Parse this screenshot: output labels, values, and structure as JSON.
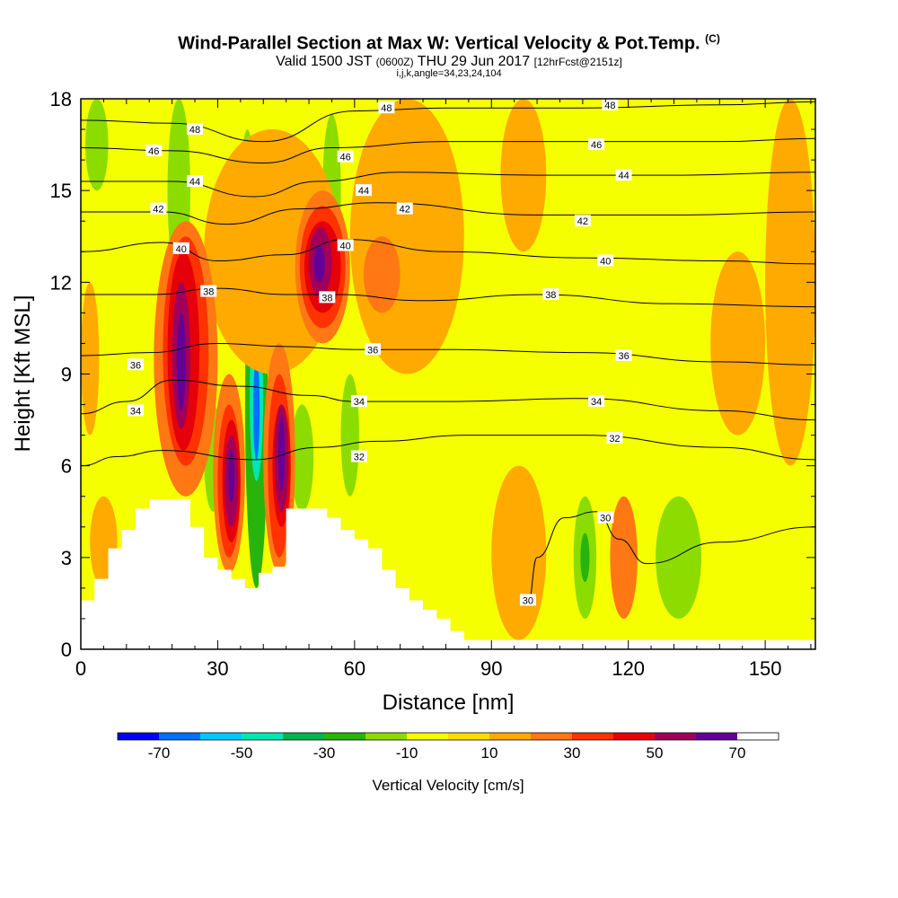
{
  "title": {
    "main": "Wind-Parallel Section at Max W: Vertical Velocity & Pot.Temp.",
    "main_tag": "(C)",
    "valid_prefix": "Valid 1500 JST",
    "valid_zulu": "(0600Z)",
    "valid_date": "THU 29 Jun 2017",
    "valid_fcst": "[12hrFcst@2151z]",
    "indices": "i,j,k,angle=34,23,24,104"
  },
  "chart_data": {
    "type": "heatmap",
    "xlabel": "Distance [nm]",
    "ylabel": "Height [Kft MSL]",
    "xlim": [
      0,
      161
    ],
    "ylim": [
      0,
      18
    ],
    "x_ticks": [
      0,
      30,
      60,
      90,
      120,
      150
    ],
    "y_ticks": [
      0,
      3,
      6,
      9,
      12,
      15,
      18
    ],
    "colorbar": {
      "label": "Vertical Velocity [cm/s]",
      "levels": [
        -80,
        -70,
        -60,
        -50,
        -40,
        -30,
        -20,
        -10,
        0,
        10,
        20,
        30,
        40,
        50,
        60,
        70,
        80
      ],
      "tick_labels": [
        "-70",
        "-50",
        "-30",
        "-10",
        "10",
        "30",
        "50",
        "70"
      ],
      "tick_values": [
        -70,
        -50,
        -30,
        -10,
        10,
        30,
        50,
        70
      ],
      "colors": [
        "#0000ff",
        "#0070ff",
        "#00c8ff",
        "#00e6b4",
        "#00b450",
        "#28b40a",
        "#8cdc00",
        "#f5ff00",
        "#ffdc00",
        "#ffaa00",
        "#ff7814",
        "#ff3200",
        "#e6000a",
        "#a0005a",
        "#640096"
      ]
    },
    "w_cells": [
      {
        "x0": 1,
        "x1": 6,
        "y0": 15,
        "y1": 18,
        "w": -20
      },
      {
        "x0": 19,
        "x1": 24,
        "y0": 12,
        "y1": 18,
        "w": -20
      },
      {
        "x0": 35,
        "x1": 38,
        "y0": 12.5,
        "y1": 17,
        "w": -20
      },
      {
        "x0": 53,
        "x1": 57,
        "y0": 12.5,
        "y1": 17.5,
        "w": -20
      },
      {
        "x0": 101,
        "x1": 160,
        "y0": 0.3,
        "y1": 18,
        "w": -10
      },
      {
        "x0": 73,
        "x1": 100,
        "y0": 0.3,
        "y1": 6,
        "w": -10
      },
      {
        "x0": 36,
        "x1": 41,
        "y0": 2,
        "y1": 14,
        "w": -30
      },
      {
        "x0": 37,
        "x1": 40,
        "y0": 5.5,
        "y1": 11,
        "w": -50
      },
      {
        "x0": 37.8,
        "x1": 39.2,
        "y0": 6.2,
        "y1": 9.5,
        "w": -70
      },
      {
        "x0": 27,
        "x1": 31,
        "y0": 4.5,
        "y1": 8,
        "w": -20
      },
      {
        "x0": 46,
        "x1": 51,
        "y0": 4.5,
        "y1": 8,
        "w": -20
      },
      {
        "x0": 57,
        "x1": 61,
        "y0": 5,
        "y1": 9,
        "w": -20
      },
      {
        "x0": 108,
        "x1": 113,
        "y0": 1,
        "y1": 5,
        "w": -20
      },
      {
        "x0": 109.5,
        "x1": 111.5,
        "y0": 2.2,
        "y1": 3.8,
        "w": -30
      },
      {
        "x0": 126,
        "x1": 136,
        "y0": 1,
        "y1": 5,
        "w": -20
      },
      {
        "x0": 2,
        "x1": 8,
        "y0": 2,
        "y1": 5,
        "w": 10
      },
      {
        "x0": 27,
        "x1": 57,
        "y0": 9,
        "y1": 17,
        "w": 10
      },
      {
        "x0": 59,
        "x1": 84,
        "y0": 9,
        "y1": 18,
        "w": 10
      },
      {
        "x0": 92,
        "x1": 102,
        "y0": 13,
        "y1": 18,
        "w": 10
      },
      {
        "x0": 90,
        "x1": 102,
        "y0": 0.3,
        "y1": 6,
        "w": 10
      },
      {
        "x0": 138,
        "x1": 150,
        "y0": 7,
        "y1": 13,
        "w": 10
      },
      {
        "x0": 150,
        "x1": 161,
        "y0": 6,
        "y1": 18,
        "w": 10
      },
      {
        "x0": 0,
        "x1": 4,
        "y0": 7,
        "y1": 12,
        "w": 10
      },
      {
        "x0": 16,
        "x1": 30,
        "y0": 5,
        "y1": 14,
        "w": 20
      },
      {
        "x0": 47,
        "x1": 59,
        "y0": 10,
        "y1": 15,
        "w": 20
      },
      {
        "x0": 29,
        "x1": 36,
        "y0": 2.5,
        "y1": 9,
        "w": 20
      },
      {
        "x0": 40,
        "x1": 47,
        "y0": 2.5,
        "y1": 10,
        "w": 20
      },
      {
        "x0": 62,
        "x1": 70,
        "y0": 11,
        "y1": 13.5,
        "w": 20
      },
      {
        "x0": 116,
        "x1": 122,
        "y0": 1,
        "y1": 5,
        "w": 20
      },
      {
        "x0": 18,
        "x1": 28,
        "y0": 6,
        "y1": 13.5,
        "w": 30
      },
      {
        "x0": 48,
        "x1": 58,
        "y0": 10.5,
        "y1": 14.5,
        "w": 30
      },
      {
        "x0": 30,
        "x1": 35,
        "y0": 3,
        "y1": 8,
        "w": 30
      },
      {
        "x0": 41,
        "x1": 46,
        "y0": 3,
        "y1": 9,
        "w": 30
      },
      {
        "x0": 19,
        "x1": 26,
        "y0": 6.5,
        "y1": 13,
        "w": 40
      },
      {
        "x0": 31,
        "x1": 35,
        "y0": 3.5,
        "y1": 7.5,
        "w": 40
      },
      {
        "x0": 42,
        "x1": 46,
        "y0": 4,
        "y1": 8,
        "w": 40
      },
      {
        "x0": 49,
        "x1": 57,
        "y0": 11,
        "y1": 14,
        "w": 40
      },
      {
        "x0": 20,
        "x1": 24,
        "y0": 7.2,
        "y1": 12,
        "w": 50
      },
      {
        "x0": 31.5,
        "x1": 34.5,
        "y0": 4,
        "y1": 7,
        "w": 50
      },
      {
        "x0": 42.5,
        "x1": 45.5,
        "y0": 4.5,
        "y1": 8,
        "w": 50
      },
      {
        "x0": 50,
        "x1": 55,
        "y0": 11.5,
        "y1": 13.8,
        "w": 50
      },
      {
        "x0": 21,
        "x1": 23,
        "y0": 7.8,
        "y1": 11,
        "w": 60
      },
      {
        "x0": 32.3,
        "x1": 33.7,
        "y0": 4.8,
        "y1": 6.5,
        "w": 60
      },
      {
        "x0": 43.3,
        "x1": 44.7,
        "y0": 5.2,
        "y1": 7.6,
        "w": 60
      },
      {
        "x0": 51,
        "x1": 53.5,
        "y0": 12,
        "y1": 13.2,
        "w": 60
      },
      {
        "x0": 43.6,
        "x1": 44.4,
        "y0": 5.6,
        "y1": 7.2,
        "w": 70
      },
      {
        "x0": 51.6,
        "x1": 52.8,
        "y0": 12.2,
        "y1": 12.9,
        "w": 70
      }
    ],
    "terrain": [
      [
        0,
        1.6
      ],
      [
        3,
        1.6
      ],
      [
        3,
        2.3
      ],
      [
        6,
        2.3
      ],
      [
        6,
        3.3
      ],
      [
        9,
        3.3
      ],
      [
        9,
        3.9
      ],
      [
        12,
        3.9
      ],
      [
        12,
        4.6
      ],
      [
        15,
        4.6
      ],
      [
        15,
        4.9
      ],
      [
        24,
        4.9
      ],
      [
        24,
        4.0
      ],
      [
        27,
        4.0
      ],
      [
        27,
        3.0
      ],
      [
        30,
        3.0
      ],
      [
        30,
        2.6
      ],
      [
        33,
        2.6
      ],
      [
        33,
        2.3
      ],
      [
        36,
        2.3
      ],
      [
        36,
        2.0
      ],
      [
        39,
        2.0
      ],
      [
        39,
        2.5
      ],
      [
        42,
        2.5
      ],
      [
        42,
        2.7
      ],
      [
        45,
        2.7
      ],
      [
        45,
        4.6
      ],
      [
        54,
        4.6
      ],
      [
        54,
        4.3
      ],
      [
        57,
        4.3
      ],
      [
        57,
        3.9
      ],
      [
        60,
        3.9
      ],
      [
        60,
        3.6
      ],
      [
        63,
        3.6
      ],
      [
        63,
        3.3
      ],
      [
        66,
        3.3
      ],
      [
        66,
        2.6
      ],
      [
        69,
        2.6
      ],
      [
        69,
        2.0
      ],
      [
        72,
        2.0
      ],
      [
        72,
        1.6
      ],
      [
        75,
        1.6
      ],
      [
        75,
        1.3
      ],
      [
        78,
        1.3
      ],
      [
        78,
        1.0
      ],
      [
        81,
        1.0
      ],
      [
        81,
        0.6
      ],
      [
        84,
        0.6
      ],
      [
        84,
        0.3
      ],
      [
        161,
        0.3
      ]
    ],
    "theta_contours": [
      {
        "value": 48,
        "points": [
          [
            0,
            17.3
          ],
          [
            20,
            17.2
          ],
          [
            40,
            16.6
          ],
          [
            60,
            17.6
          ],
          [
            80,
            17.7
          ],
          [
            110,
            17.7
          ],
          [
            140,
            17.8
          ],
          [
            161,
            17.9
          ]
        ]
      },
      {
        "value": 46,
        "points": [
          [
            0,
            16.4
          ],
          [
            20,
            16.3
          ],
          [
            40,
            15.9
          ],
          [
            55,
            16.4
          ],
          [
            80,
            16.6
          ],
          [
            110,
            16.6
          ],
          [
            140,
            16.6
          ],
          [
            161,
            16.7
          ]
        ]
      },
      {
        "value": 44,
        "points": [
          [
            0,
            15.3
          ],
          [
            20,
            15.3
          ],
          [
            38,
            14.8
          ],
          [
            52,
            15.3
          ],
          [
            70,
            15.6
          ],
          [
            100,
            15.5
          ],
          [
            130,
            15.5
          ],
          [
            161,
            15.6
          ]
        ]
      },
      {
        "value": 42,
        "points": [
          [
            0,
            14.3
          ],
          [
            18,
            14.3
          ],
          [
            32,
            13.9
          ],
          [
            48,
            14.4
          ],
          [
            65,
            14.6
          ],
          [
            100,
            14.2
          ],
          [
            130,
            14.2
          ],
          [
            161,
            14.3
          ]
        ]
      },
      {
        "value": 40,
        "points": [
          [
            0,
            13.0
          ],
          [
            18,
            13.3
          ],
          [
            30,
            12.7
          ],
          [
            45,
            12.9
          ],
          [
            58,
            13.4
          ],
          [
            80,
            13.0
          ],
          [
            110,
            12.8
          ],
          [
            140,
            12.7
          ],
          [
            161,
            12.6
          ]
        ]
      },
      {
        "value": 38,
        "points": [
          [
            0,
            11.6
          ],
          [
            16,
            11.6
          ],
          [
            30,
            11.8
          ],
          [
            45,
            11.6
          ],
          [
            56,
            11.6
          ],
          [
            75,
            11.4
          ],
          [
            100,
            11.6
          ],
          [
            130,
            11.3
          ],
          [
            161,
            11.2
          ]
        ]
      },
      {
        "value": 36,
        "points": [
          [
            0,
            9.6
          ],
          [
            15,
            9.7
          ],
          [
            30,
            10.0
          ],
          [
            45,
            9.9
          ],
          [
            60,
            9.8
          ],
          [
            80,
            9.8
          ],
          [
            110,
            9.7
          ],
          [
            140,
            9.4
          ],
          [
            161,
            9.3
          ]
        ]
      },
      {
        "value": 34,
        "points": [
          [
            0,
            7.7
          ],
          [
            10,
            8.1
          ],
          [
            20,
            8.8
          ],
          [
            35,
            8.6
          ],
          [
            50,
            8.3
          ],
          [
            60,
            8.1
          ],
          [
            80,
            8.1
          ],
          [
            110,
            8.2
          ],
          [
            140,
            7.8
          ],
          [
            161,
            7.5
          ]
        ]
      },
      {
        "value": 32,
        "points": [
          [
            0,
            6.0
          ],
          [
            8,
            6.3
          ],
          [
            18,
            6.5
          ],
          [
            38,
            6.2
          ],
          [
            52,
            6.6
          ],
          [
            65,
            6.8
          ],
          [
            85,
            7.0
          ],
          [
            110,
            7.0
          ],
          [
            140,
            6.6
          ],
          [
            161,
            6.2
          ]
        ]
      },
      {
        "value": 30,
        "points": [
          [
            98,
            1.5
          ],
          [
            100,
            3.0
          ],
          [
            106,
            4.3
          ],
          [
            113,
            4.5
          ],
          [
            118,
            3.6
          ],
          [
            124,
            2.8
          ],
          [
            140,
            3.5
          ],
          [
            161,
            4.0
          ]
        ]
      }
    ],
    "theta_labels": [
      {
        "value": 48,
        "x": 25,
        "y": 17.0,
        "text": "48"
      },
      {
        "value": 48,
        "x": 67,
        "y": 17.7,
        "text": "48"
      },
      {
        "value": 48,
        "x": 116,
        "y": 17.8,
        "text": "48"
      },
      {
        "value": 46,
        "x": 16,
        "y": 16.3,
        "text": "46"
      },
      {
        "value": 46,
        "x": 58,
        "y": 16.1,
        "text": "46"
      },
      {
        "value": 46,
        "x": 113,
        "y": 16.5,
        "text": "46"
      },
      {
        "value": 44,
        "x": 25,
        "y": 15.3,
        "text": "44"
      },
      {
        "value": 44,
        "x": 62,
        "y": 15.0,
        "text": "44"
      },
      {
        "value": 44,
        "x": 119,
        "y": 15.5,
        "text": "44"
      },
      {
        "value": 42,
        "x": 17,
        "y": 14.4,
        "text": "42"
      },
      {
        "value": 42,
        "x": 71,
        "y": 14.4,
        "text": "42"
      },
      {
        "value": 42,
        "x": 110,
        "y": 14.0,
        "text": "42"
      },
      {
        "value": 40,
        "x": 22,
        "y": 13.1,
        "text": "40"
      },
      {
        "value": 40,
        "x": 58,
        "y": 13.2,
        "text": "40"
      },
      {
        "value": 40,
        "x": 115,
        "y": 12.7,
        "text": "40"
      },
      {
        "value": 38,
        "x": 28,
        "y": 11.7,
        "text": "38"
      },
      {
        "value": 38,
        "x": 54,
        "y": 11.5,
        "text": "38"
      },
      {
        "value": 38,
        "x": 103,
        "y": 11.6,
        "text": "38"
      },
      {
        "value": 36,
        "x": 12,
        "y": 9.3,
        "text": "36"
      },
      {
        "value": 36,
        "x": 64,
        "y": 9.8,
        "text": "36"
      },
      {
        "value": 36,
        "x": 119,
        "y": 9.6,
        "text": "36"
      },
      {
        "value": 34,
        "x": 12,
        "y": 7.8,
        "text": "34"
      },
      {
        "value": 34,
        "x": 61,
        "y": 8.1,
        "text": "34"
      },
      {
        "value": 34,
        "x": 113,
        "y": 8.1,
        "text": "34"
      },
      {
        "value": 32,
        "x": 61,
        "y": 6.3,
        "text": "32"
      },
      {
        "value": 32,
        "x": 117,
        "y": 6.9,
        "text": "32"
      },
      {
        "value": 30,
        "x": 115,
        "y": 4.3,
        "text": "30"
      },
      {
        "value": 30,
        "x": 98,
        "y": 1.6,
        "text": "30"
      }
    ]
  }
}
